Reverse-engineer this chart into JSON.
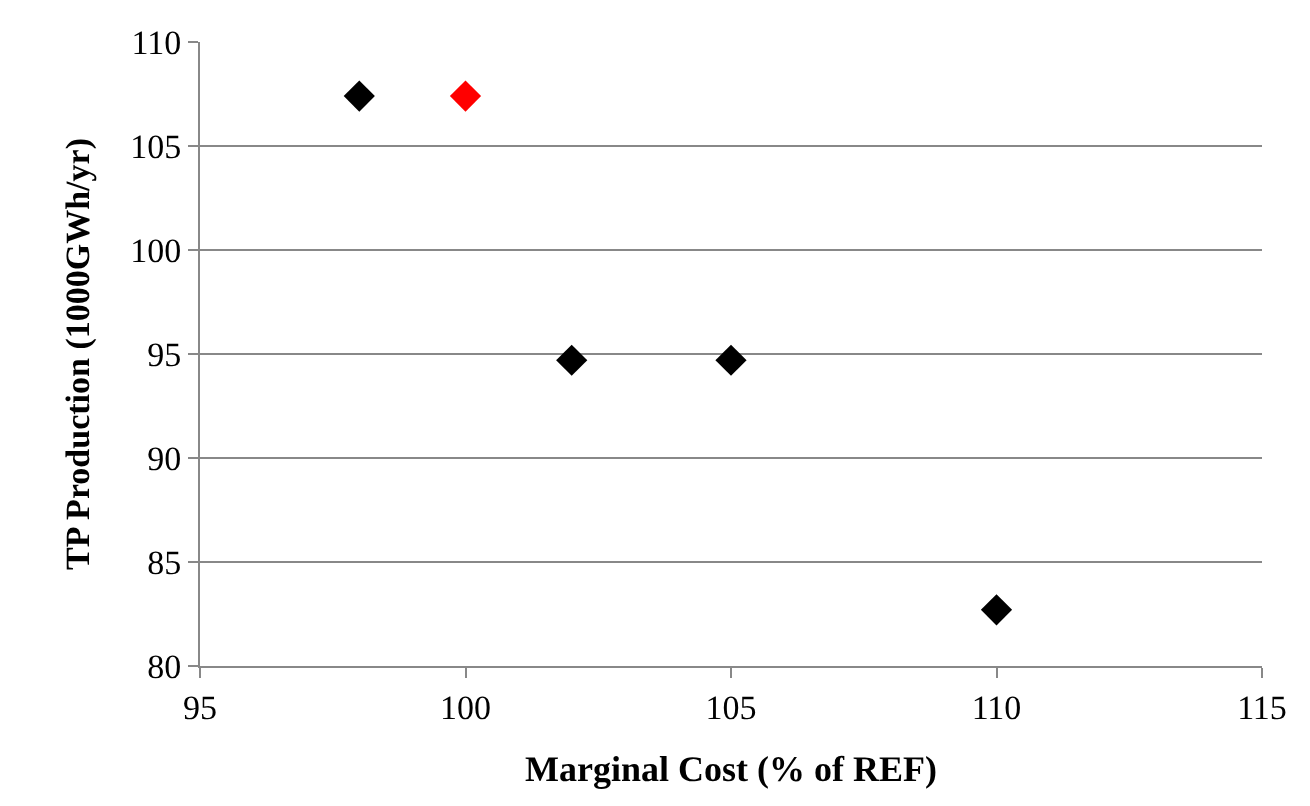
{
  "chart_data": {
    "type": "scatter",
    "xlabel": "Marginal Cost (% of REF)",
    "ylabel": "TP Production (1000GWh/yr)",
    "x": [
      98,
      100,
      102,
      105,
      110
    ],
    "values": [
      107.4,
      107.4,
      94.7,
      94.7,
      82.7
    ],
    "colors": [
      "#000000",
      "#ff0000",
      "#000000",
      "#000000",
      "#000000"
    ],
    "xlim": [
      95,
      115
    ],
    "xticks": [
      95,
      100,
      105,
      110,
      115
    ],
    "ylim": [
      80,
      110
    ],
    "yticks": [
      80,
      85,
      90,
      95,
      100,
      105,
      110
    ],
    "grid": "y",
    "marker": "diamond",
    "legend": false
  }
}
